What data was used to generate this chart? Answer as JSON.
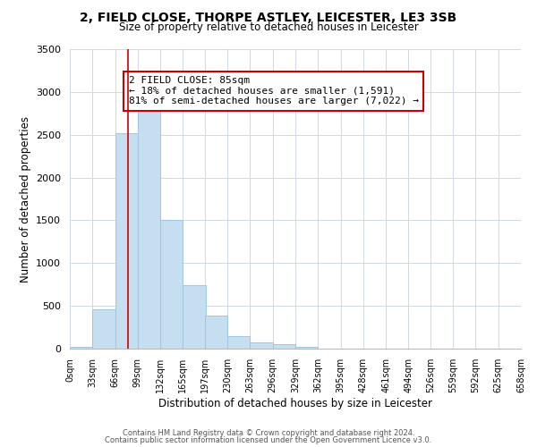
{
  "title": "2, FIELD CLOSE, THORPE ASTLEY, LEICESTER, LE3 3SB",
  "subtitle": "Size of property relative to detached houses in Leicester",
  "xlabel": "Distribution of detached houses by size in Leicester",
  "ylabel": "Number of detached properties",
  "bar_color": "#c5dff0",
  "bar_edge_color": "#a0c4e0",
  "bins_left": [
    0,
    33,
    66,
    99,
    132,
    165,
    197,
    230,
    263,
    296,
    329,
    362,
    395,
    428,
    461,
    494,
    526,
    559,
    592,
    625
  ],
  "bin_width": 33,
  "heights": [
    25,
    460,
    2520,
    2800,
    1500,
    740,
    390,
    150,
    75,
    50,
    20,
    5,
    5,
    2,
    0,
    0,
    0,
    0,
    0,
    0
  ],
  "tick_labels": [
    "0sqm",
    "33sqm",
    "66sqm",
    "99sqm",
    "132sqm",
    "165sqm",
    "197sqm",
    "230sqm",
    "263sqm",
    "296sqm",
    "329sqm",
    "362sqm",
    "395sqm",
    "428sqm",
    "461sqm",
    "494sqm",
    "526sqm",
    "559sqm",
    "592sqm",
    "625sqm",
    "658sqm"
  ],
  "ylim": [
    0,
    3500
  ],
  "yticks": [
    0,
    500,
    1000,
    1500,
    2000,
    2500,
    3000,
    3500
  ],
  "property_line_x": 85,
  "property_line_color": "#cc0000",
  "annotation_line1": "2 FIELD CLOSE: 85sqm",
  "annotation_line2": "← 18% of detached houses are smaller (1,591)",
  "annotation_line3": "81% of semi-detached houses are larger (7,022) →",
  "background_color": "#ffffff",
  "grid_color": "#d0d8e8",
  "footer_line1": "Contains HM Land Registry data © Crown copyright and database right 2024.",
  "footer_line2": "Contains public sector information licensed under the Open Government Licence v3.0."
}
